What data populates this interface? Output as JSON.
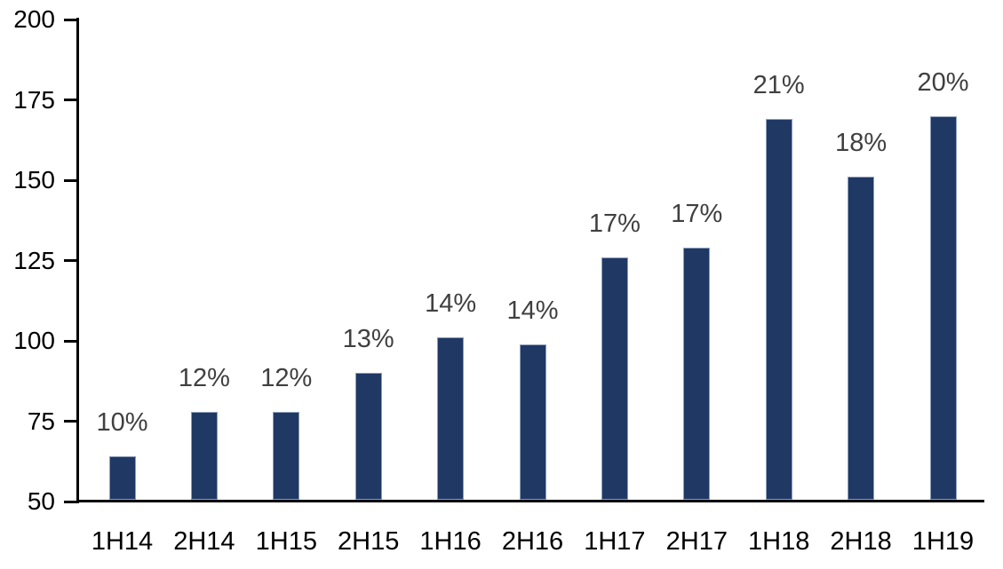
{
  "chart_data": {
    "type": "bar",
    "title": "",
    "xlabel": "",
    "ylabel": "",
    "categories": [
      "1H14",
      "2H14",
      "1H15",
      "2H15",
      "1H16",
      "2H16",
      "1H17",
      "2H17",
      "1H18",
      "2H18",
      "1H19"
    ],
    "values": [
      64,
      78,
      78,
      90,
      101,
      99,
      126,
      129,
      169,
      151,
      170
    ],
    "bar_labels": [
      "10%",
      "12%",
      "12%",
      "13%",
      "14%",
      "14%",
      "17%",
      "17%",
      "21%",
      "18%",
      "20%"
    ],
    "ylim": [
      50,
      200
    ],
    "yticks": [
      50,
      75,
      100,
      125,
      150,
      175,
      200
    ],
    "grid": false,
    "legend": "none",
    "colors": {
      "bar_fill": "#1F3864",
      "bar_border": "#8E9FBA",
      "data_label": "#404040",
      "axis": "#000000",
      "tick_label": "#000000"
    }
  }
}
